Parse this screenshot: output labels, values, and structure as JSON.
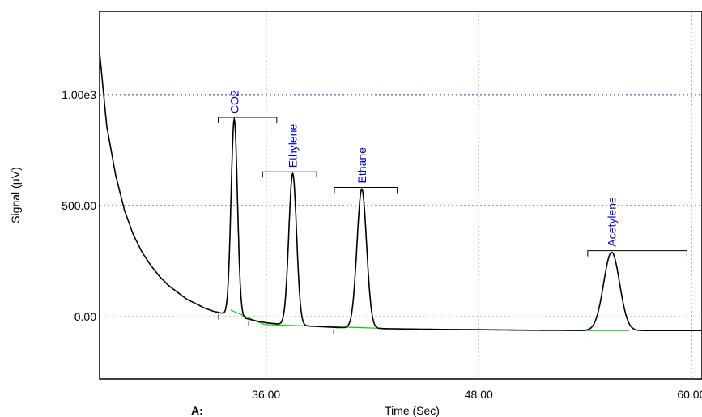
{
  "chart_data": {
    "type": "line",
    "xlabel": "Time (Sec)",
    "ylabel": "Signal (µV)",
    "panel_label": "A:",
    "xlim": [
      26.6,
      60.6
    ],
    "ylim": [
      -280,
      1375
    ],
    "x_ticks": [
      36,
      48,
      60
    ],
    "x_tick_labels": [
      "36.00",
      "48.00",
      "60.00"
    ],
    "y_ticks": [
      0,
      500,
      1000
    ],
    "y_tick_labels": [
      "0.00",
      "500.00",
      "1.00e3"
    ],
    "grid": true,
    "series": [
      {
        "color": "#000000",
        "x": [
          26.6,
          27.0,
          27.5,
          28.0,
          28.5,
          29.0,
          29.5,
          30.0,
          30.5,
          31.0,
          31.5,
          32.0,
          32.5,
          33.0,
          33.3,
          33.8,
          34.3,
          35.0,
          35.5,
          36.0,
          37.0,
          38.0,
          39.0,
          40.0,
          41.0,
          42.0,
          43.0,
          44.0,
          46.0,
          48.0,
          50.0,
          52.0,
          54.0,
          56.0,
          58.0,
          60.6
        ],
        "y": [
          1190,
          860,
          640,
          480,
          370,
          290,
          230,
          180,
          140,
          110,
          80,
          60,
          40,
          25,
          20,
          10,
          0,
          -10,
          -20,
          -27,
          -35,
          -40,
          -44,
          -48,
          -50,
          -52,
          -54,
          -55,
          -57,
          -58,
          -60,
          -61,
          -62,
          -62,
          -62,
          -62
        ]
      }
    ],
    "peaks": [
      {
        "label": "CO2",
        "rt": 34.2,
        "height": 890,
        "width": 0.18,
        "range": [
          33.3,
          36.6
        ]
      },
      {
        "label": "Ethylene",
        "rt": 37.5,
        "height": 645,
        "width": 0.22,
        "range": [
          35.8,
          38.85
        ]
      },
      {
        "label": "Ethane",
        "rt": 41.4,
        "height": 575,
        "width": 0.27,
        "range": [
          39.85,
          43.4
        ]
      },
      {
        "label": "Acetylene",
        "rt": 55.5,
        "height": 290,
        "width": 0.45,
        "range": [
          54.15,
          59.75
        ]
      }
    ],
    "baseline": {
      "color": "#00cc00",
      "x": [
        34.0,
        35.9,
        39.8,
        43.8,
        54.0,
        56.5
      ],
      "y": [
        30,
        -35,
        -45,
        -55,
        -62,
        -62
      ]
    },
    "integration_marks": [
      33.3,
      35.0,
      36.0,
      39.8,
      54.0
    ]
  }
}
